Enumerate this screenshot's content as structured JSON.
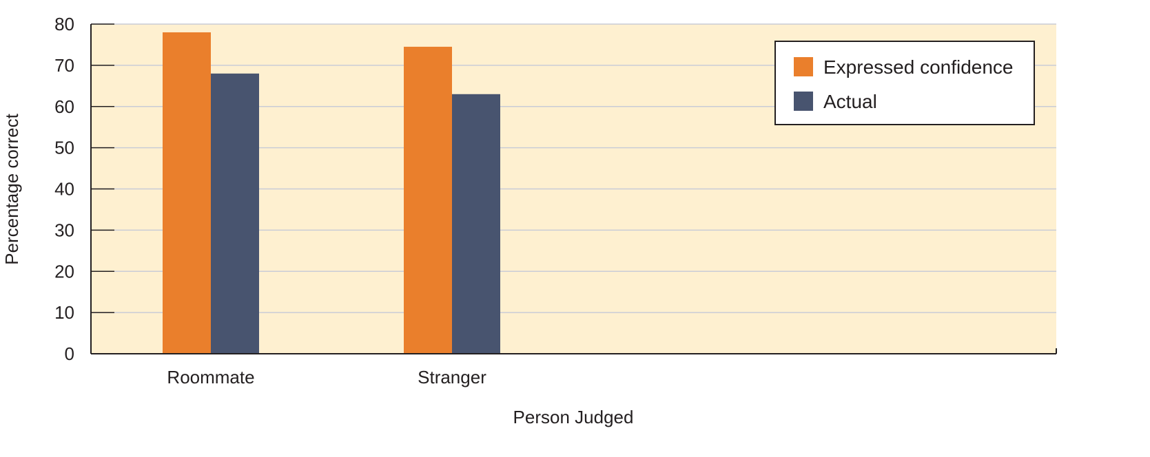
{
  "chart_data": {
    "type": "bar",
    "categories": [
      "Roommate",
      "Stranger"
    ],
    "series": [
      {
        "name": "Expressed confidence",
        "values": [
          78,
          74.5
        ],
        "color": "#ea7f2c"
      },
      {
        "name": "Actual",
        "values": [
          68,
          63
        ],
        "color": "#48546f"
      }
    ],
    "xlabel": "Person Judged",
    "ylabel": "Percentage correct",
    "ylim": [
      0,
      80
    ],
    "yticks": [
      0,
      10,
      20,
      30,
      40,
      50,
      60,
      70,
      80
    ],
    "grid": true,
    "legend_position": "top-right",
    "plot_background": "#fef0d0",
    "grid_color": "#c9ccd6"
  }
}
